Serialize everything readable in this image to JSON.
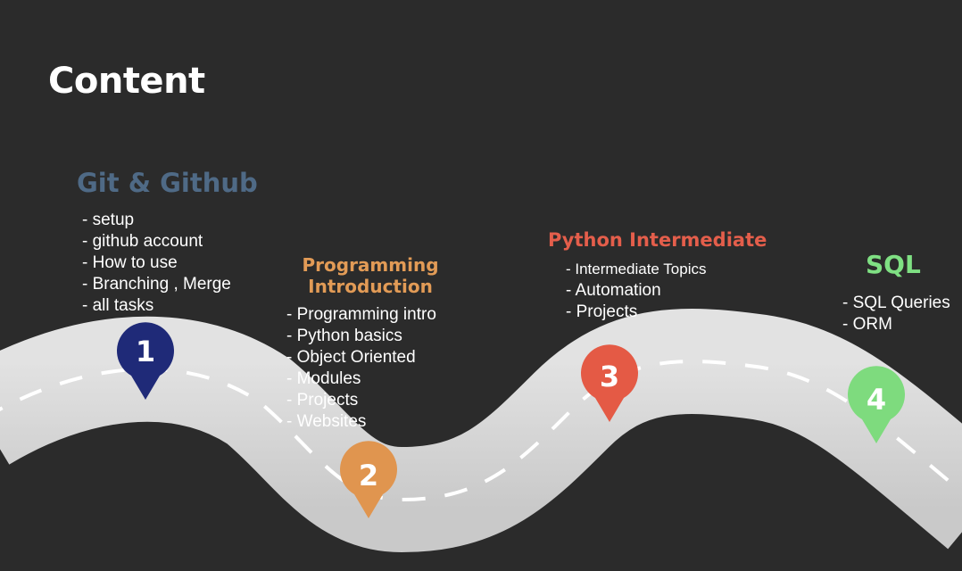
{
  "title": "Content",
  "stages": [
    {
      "number": "1",
      "heading": "Git & Github",
      "color": "#1f2a78",
      "items": [
        "- setup",
        "- github account",
        "- How to use",
        "- Branching , Merge",
        "- all tasks"
      ]
    },
    {
      "number": "2",
      "heading_lines": [
        "Programming",
        "Introduction"
      ],
      "color": "#e0954f",
      "items": [
        "- Programming intro",
        "- Python basics",
        "- Object Oriented",
        "- Modules",
        "- Projects",
        "- Websites"
      ]
    },
    {
      "number": "3",
      "heading": "Python Intermediate",
      "color": "#e45a45",
      "items": [
        "- Intermediate Topics",
        "- Automation",
        "- Projects"
      ]
    },
    {
      "number": "4",
      "heading": "SQL",
      "color": "#7edb7e",
      "items": [
        "- SQL Queries",
        "- ORM"
      ]
    }
  ]
}
